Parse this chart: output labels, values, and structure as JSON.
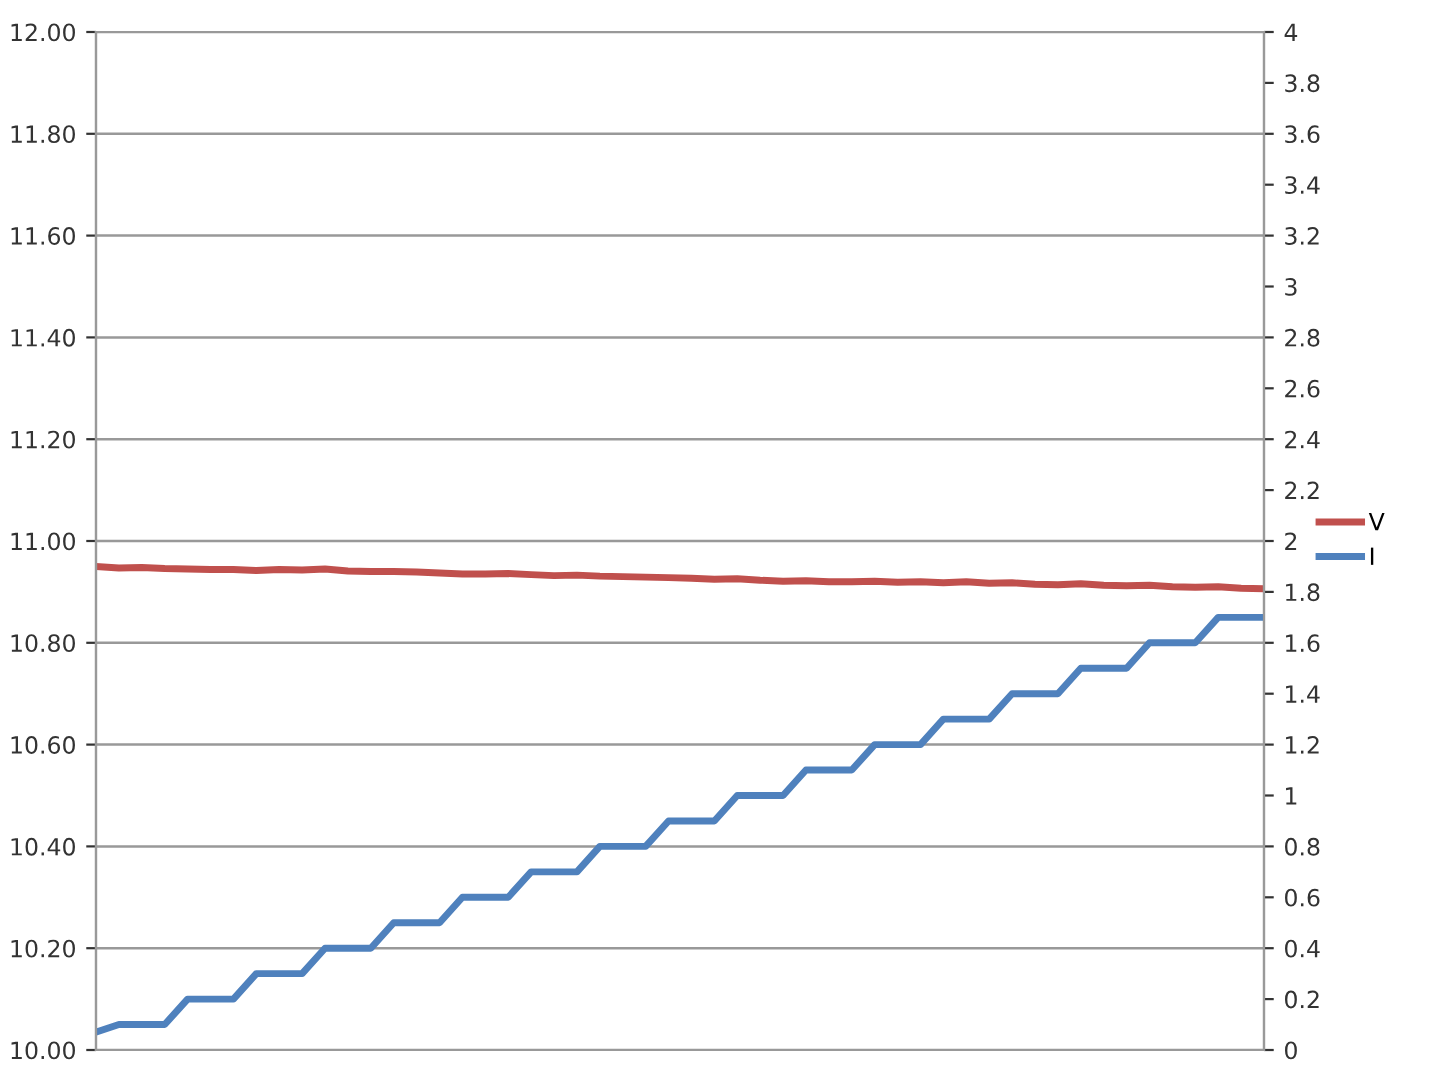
{
  "chart_data": {
    "type": "line",
    "categories": [
      null,
      null,
      null,
      null,
      null,
      null,
      null,
      null,
      null,
      null,
      null,
      null,
      null,
      null,
      null,
      null,
      null,
      null,
      null,
      null,
      null,
      null,
      null,
      null,
      null,
      null,
      null,
      null,
      null,
      null,
      null,
      null,
      null,
      null,
      null,
      null,
      null,
      null,
      null,
      null,
      null,
      null,
      null,
      null,
      null,
      null,
      null,
      null,
      null,
      null,
      null,
      null
    ],
    "series": [
      {
        "name": "V",
        "color": "#c0504d",
        "values": [
          10.95,
          10.947,
          10.948,
          10.946,
          10.945,
          10.944,
          10.944,
          10.942,
          10.944,
          10.943,
          10.945,
          10.941,
          10.94,
          10.94,
          10.939,
          10.937,
          10.935,
          10.935,
          10.936,
          10.934,
          10.932,
          10.933,
          10.931,
          10.93,
          10.929,
          10.928,
          10.927,
          10.925,
          10.926,
          10.923,
          10.921,
          10.922,
          10.92,
          10.92,
          10.921,
          10.919,
          10.92,
          10.918,
          10.92,
          10.917,
          10.918,
          10.915,
          10.914,
          10.916,
          10.913,
          10.912,
          10.913,
          10.91,
          10.909,
          10.91,
          10.907,
          10.906
        ]
      },
      {
        "name": "I",
        "color": "#4f81bd",
        "axis": "y2",
        "values": [
          0.07,
          0.1,
          0.1,
          0.1,
          0.2,
          0.2,
          0.2,
          0.3,
          0.3,
          0.3,
          0.4,
          0.4,
          0.4,
          0.5,
          0.5,
          0.5,
          0.6,
          0.6,
          0.6,
          0.7,
          0.7,
          0.7,
          0.8,
          0.8,
          0.8,
          0.9,
          0.9,
          0.9,
          1.0,
          1.0,
          1.0,
          1.1,
          1.1,
          1.1,
          1.2,
          1.2,
          1.2,
          1.3,
          1.3,
          1.3,
          1.4,
          1.4,
          1.4,
          1.5,
          1.5,
          1.5,
          1.6,
          1.6,
          1.6,
          1.7,
          1.7,
          1.7
        ]
      }
    ],
    "ylim": [
      10.0,
      12.0
    ],
    "yticks": [
      {
        "value": 10.0,
        "label": "10.00"
      },
      {
        "value": 10.2,
        "label": "10.20"
      },
      {
        "value": 10.4,
        "label": "10.40"
      },
      {
        "value": 10.6,
        "label": "10.60"
      },
      {
        "value": 10.8,
        "label": "10.80"
      },
      {
        "value": 11.0,
        "label": "11.00"
      },
      {
        "value": 11.2,
        "label": "11.20"
      },
      {
        "value": 11.4,
        "label": "11.40"
      },
      {
        "value": 11.6,
        "label": "11.60"
      },
      {
        "value": 11.8,
        "label": "11.80"
      },
      {
        "value": 12.0,
        "label": "12.00"
      }
    ],
    "y2lim": [
      0,
      4
    ],
    "y2ticks": [
      0,
      0.2,
      0.4,
      0.6,
      0.8,
      1,
      1.2,
      1.4,
      1.6,
      1.8,
      2,
      2.2,
      2.4,
      2.6,
      2.8,
      3,
      3.2,
      3.4,
      3.6,
      3.8,
      4
    ],
    "grid": "y",
    "legend": "right",
    "marker": "none",
    "line_style": "solid"
  }
}
